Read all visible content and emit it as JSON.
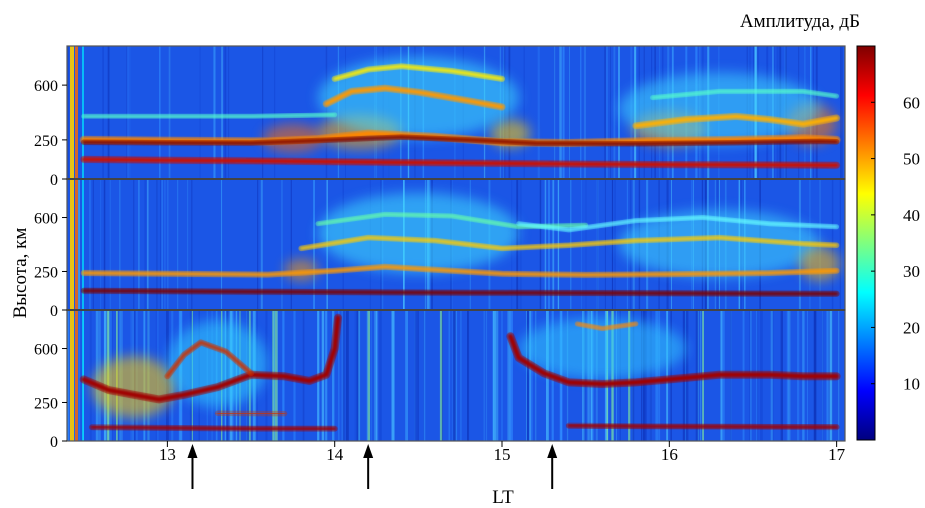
{
  "chart_data": {
    "type": "heatmap",
    "title": "",
    "xlabel": "LT",
    "ylabel": "Высота, км",
    "colorbar_label": "Амплитуда, дБ",
    "colorbar": {
      "range": [
        0,
        70
      ],
      "ticks": [
        10,
        20,
        30,
        40,
        50,
        60
      ],
      "colormap": [
        "#00007f",
        "#0000ff",
        "#007fff",
        "#00ffff",
        "#7fff7f",
        "#ffff00",
        "#ff7f00",
        "#ff0000",
        "#7f0000"
      ]
    },
    "x": {
      "range": [
        12.4,
        17.05
      ],
      "ticks": [
        13,
        14,
        15,
        16,
        17
      ]
    },
    "arrows_at": [
      13.15,
      14.2,
      15.3
    ],
    "panels": [
      {
        "yrange": [
          0,
          850
        ],
        "yticks": [
          0,
          250,
          600
        ],
        "traces": [
          {
            "color": "#ff8800",
            "width": 5,
            "points": [
              [
                12.5,
                250
              ],
              [
                13,
                245
              ],
              [
                13.6,
                240
              ],
              [
                13.9,
                255
              ],
              [
                14.2,
                290
              ],
              [
                14.6,
                270
              ],
              [
                15,
                235
              ],
              [
                15.4,
                230
              ],
              [
                15.8,
                240
              ],
              [
                16.4,
                250
              ],
              [
                16.8,
                260
              ],
              [
                17.0,
                250
              ]
            ]
          },
          {
            "color": "#7a0000",
            "width": 2.5,
            "points": [
              [
                12.5,
                235
              ],
              [
                13,
                232
              ],
              [
                13.5,
                230
              ],
              [
                14,
                250
              ],
              [
                14.4,
                268
              ],
              [
                14.8,
                250
              ],
              [
                15.2,
                228
              ],
              [
                15.8,
                225
              ],
              [
                16.4,
                232
              ],
              [
                16.9,
                240
              ],
              [
                17.0,
                238
              ]
            ]
          },
          {
            "color": "#cc1000",
            "width": 4,
            "points": [
              [
                12.5,
                125
              ],
              [
                13,
                120
              ],
              [
                13.6,
                115
              ],
              [
                14,
                110
              ],
              [
                14.5,
                105
              ],
              [
                15,
                100
              ],
              [
                15.5,
                95
              ],
              [
                16,
                92
              ],
              [
                16.5,
                90
              ],
              [
                17.0,
                88
              ]
            ]
          },
          {
            "color": "#ff9900",
            "width": 4,
            "points": [
              [
                13.95,
                480
              ],
              [
                14.1,
                560
              ],
              [
                14.3,
                580
              ],
              [
                14.5,
                555
              ],
              [
                14.8,
                500
              ],
              [
                15,
                460
              ]
            ]
          },
          {
            "color": "#ffee00",
            "width": 3,
            "points": [
              [
                14.0,
                640
              ],
              [
                14.2,
                700
              ],
              [
                14.4,
                720
              ],
              [
                14.7,
                690
              ],
              [
                15,
                640
              ]
            ]
          },
          {
            "color": "#ffb000",
            "width": 4,
            "points": [
              [
                15.8,
                340
              ],
              [
                16.1,
                380
              ],
              [
                16.4,
                400
              ],
              [
                16.6,
                380
              ],
              [
                16.8,
                350
              ],
              [
                17.0,
                390
              ]
            ]
          },
          {
            "color": "#55ffcc",
            "width": 2,
            "points": [
              [
                12.5,
                400
              ],
              [
                13.5,
                400
              ],
              [
                14,
                410
              ]
            ]
          },
          {
            "color": "#55ffcc",
            "width": 2,
            "points": [
              [
                15.9,
                520
              ],
              [
                16.3,
                560
              ],
              [
                16.8,
                560
              ],
              [
                17.0,
                530
              ]
            ]
          }
        ],
        "blobs": [
          {
            "x": 13.75,
            "y": 260,
            "rx": 0.18,
            "ry": 90,
            "color": "#ff6a00"
          },
          {
            "x": 14.15,
            "y": 300,
            "rx": 0.25,
            "ry": 110,
            "color": "#ffaa00"
          },
          {
            "x": 15.05,
            "y": 290,
            "rx": 0.12,
            "ry": 90,
            "color": "#ffcc00"
          },
          {
            "x": 16.0,
            "y": 320,
            "rx": 0.22,
            "ry": 110,
            "color": "#ff9900"
          },
          {
            "x": 16.85,
            "y": 350,
            "rx": 0.15,
            "ry": 130,
            "color": "#ff7700"
          },
          {
            "x": 14.5,
            "y": 520,
            "rx": 0.6,
            "ry": 260,
            "color": "#40e0ff"
          },
          {
            "x": 16.3,
            "y": 450,
            "rx": 0.6,
            "ry": 230,
            "color": "#40d8ff"
          }
        ]
      },
      {
        "yrange": [
          0,
          850
        ],
        "yticks": [
          0,
          250,
          600
        ],
        "traces": [
          {
            "color": "#7a0000",
            "width": 3,
            "points": [
              [
                12.5,
                125
              ],
              [
                13,
                122
              ],
              [
                13.6,
                118
              ],
              [
                14.2,
                115
              ],
              [
                14.8,
                112
              ],
              [
                15.5,
                110
              ],
              [
                16.2,
                108
              ],
              [
                17.0,
                105
              ]
            ]
          },
          {
            "color": "#ff9900",
            "width": 3,
            "points": [
              [
                12.5,
                240
              ],
              [
                13,
                235
              ],
              [
                13.6,
                230
              ],
              [
                14.0,
                255
              ],
              [
                14.3,
                280
              ],
              [
                14.7,
                255
              ],
              [
                15,
                235
              ],
              [
                15.5,
                228
              ],
              [
                16,
                232
              ],
              [
                16.6,
                240
              ],
              [
                17.0,
                255
              ]
            ]
          },
          {
            "color": "#ffcc00",
            "width": 2.5,
            "points": [
              [
                13.8,
                400
              ],
              [
                14.2,
                470
              ],
              [
                14.6,
                450
              ],
              [
                15,
                400
              ],
              [
                15.4,
                420
              ],
              [
                15.8,
                450
              ],
              [
                16.3,
                470
              ],
              [
                16.8,
                430
              ],
              [
                17.0,
                420
              ]
            ]
          },
          {
            "color": "#66ffaa",
            "width": 2,
            "points": [
              [
                13.9,
                560
              ],
              [
                14.3,
                620
              ],
              [
                14.7,
                610
              ],
              [
                15.1,
                540
              ],
              [
                15.5,
                550
              ]
            ]
          },
          {
            "color": "#66ffff",
            "width": 2,
            "points": [
              [
                15.1,
                560
              ],
              [
                15.4,
                520
              ],
              [
                15.8,
                580
              ],
              [
                16.2,
                600
              ],
              [
                16.6,
                560
              ],
              [
                17.0,
                540
              ]
            ]
          }
        ],
        "blobs": [
          {
            "x": 13.8,
            "y": 260,
            "rx": 0.1,
            "ry": 70,
            "color": "#ff9900"
          },
          {
            "x": 14.5,
            "y": 500,
            "rx": 0.6,
            "ry": 260,
            "color": "#40e0ff"
          },
          {
            "x": 16.3,
            "y": 430,
            "rx": 0.6,
            "ry": 220,
            "color": "#40d8ff"
          },
          {
            "x": 16.9,
            "y": 300,
            "rx": 0.12,
            "ry": 110,
            "color": "#ffbb00"
          }
        ]
      },
      {
        "yrange": [
          0,
          850
        ],
        "yticks": [
          0,
          250,
          600
        ],
        "traces": [
          {
            "color": "#a00000",
            "width": 5,
            "points": [
              [
                12.5,
                400
              ],
              [
                12.65,
                330
              ],
              [
                12.8,
                300
              ],
              [
                12.95,
                270
              ],
              [
                13.1,
                300
              ],
              [
                13.3,
                350
              ],
              [
                13.5,
                430
              ],
              [
                13.7,
                420
              ],
              [
                13.85,
                390
              ],
              [
                13.95,
                430
              ],
              [
                14.0,
                600
              ],
              [
                14.02,
                800
              ]
            ]
          },
          {
            "color": "#cc3300",
            "width": 3,
            "points": [
              [
                13.0,
                420
              ],
              [
                13.1,
                560
              ],
              [
                13.2,
                640
              ],
              [
                13.35,
                580
              ],
              [
                13.5,
                440
              ]
            ]
          },
          {
            "color": "#cc3300",
            "width": 2.5,
            "points": [
              [
                13.3,
                180
              ],
              [
                13.7,
                178
              ]
            ]
          },
          {
            "color": "#a00000",
            "width": 3,
            "points": [
              [
                12.55,
                90
              ],
              [
                13,
                85
              ],
              [
                13.5,
                80
              ],
              [
                14,
                80
              ]
            ]
          },
          {
            "color": "#a00000",
            "width": 5,
            "points": [
              [
                15.05,
                680
              ],
              [
                15.1,
                540
              ],
              [
                15.25,
                440
              ],
              [
                15.4,
                380
              ],
              [
                15.6,
                370
              ],
              [
                15.8,
                380
              ],
              [
                16.0,
                400
              ],
              [
                16.3,
                430
              ],
              [
                16.6,
                430
              ],
              [
                16.8,
                420
              ],
              [
                17.0,
                420
              ]
            ]
          },
          {
            "color": "#a00000",
            "width": 3,
            "points": [
              [
                15.4,
                100
              ],
              [
                15.9,
                95
              ],
              [
                16.5,
                92
              ],
              [
                17.0,
                90
              ]
            ]
          },
          {
            "color": "#ff8800",
            "width": 2,
            "points": [
              [
                15.45,
                760
              ],
              [
                15.6,
                730
              ],
              [
                15.8,
                760
              ]
            ]
          }
        ],
        "blobs": [
          {
            "x": 12.8,
            "y": 350,
            "rx": 0.25,
            "ry": 200,
            "color": "#ffcc00"
          },
          {
            "x": 13.3,
            "y": 500,
            "rx": 0.3,
            "ry": 280,
            "color": "#30d0ff"
          },
          {
            "x": 15.6,
            "y": 600,
            "rx": 0.5,
            "ry": 200,
            "color": "#30c8ff"
          }
        ]
      }
    ]
  }
}
